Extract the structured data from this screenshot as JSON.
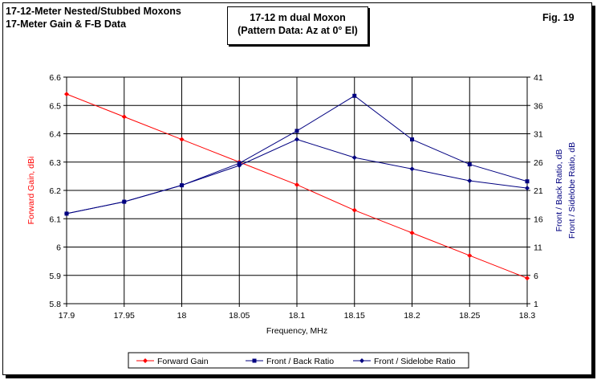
{
  "header": {
    "title_line1": "17-12-Meter Nested/Stubbed Moxons",
    "title_line2": "17-Meter Gain & F-B Data",
    "box_line1": "17-12 m dual Moxon",
    "box_line2": "(Pattern Data: Az at 0° El)",
    "fig_label": "Fig. 19"
  },
  "chart_data": {
    "type": "line",
    "title": "17-12 m dual Moxon",
    "subtitle": "(Pattern Data: Az at 0° El)",
    "xlabel": "Frequency, MHz",
    "ylabel_left": "Forward Gain, dBi",
    "ylabel_right_1": "Front / Back Ratio,  dB",
    "ylabel_right_2": "Front / Sidelobe Ratio,  dB",
    "x": [
      17.9,
      17.95,
      18.0,
      18.05,
      18.1,
      18.15,
      18.2,
      18.25,
      18.3
    ],
    "x_tick_labels": [
      "17.9",
      "17.95",
      "18",
      "18.05",
      "18.1",
      "18.15",
      "18.2",
      "18.25",
      "18.3"
    ],
    "ylim_left": [
      5.8,
      6.6
    ],
    "y_left_ticks": [
      "5.8",
      "5.9",
      "6",
      "6.1",
      "6.2",
      "6.3",
      "6.4",
      "6.5",
      "6.6"
    ],
    "ylim_right": [
      1,
      41
    ],
    "y_right_ticks": [
      "1",
      "6",
      "11",
      "16",
      "21",
      "26",
      "31",
      "36",
      "41"
    ],
    "grid": true,
    "legend_position": "bottom",
    "series": [
      {
        "name": "Forward Gain",
        "axis": "left",
        "color": "#ff0000",
        "marker": "diamond",
        "values": [
          6.54,
          6.46,
          6.38,
          6.3,
          6.22,
          6.13,
          6.05,
          5.97,
          5.89
        ]
      },
      {
        "name": "Front / Back Ratio",
        "axis": "right",
        "color": "#000080",
        "marker": "square",
        "values": [
          16.9,
          19.0,
          21.9,
          25.8,
          31.5,
          37.7,
          30.0,
          25.6,
          22.6
        ]
      },
      {
        "name": "Front / Sidelobe Ratio",
        "axis": "right",
        "color": "#000080",
        "marker": "diamond",
        "values": [
          16.9,
          19.0,
          21.9,
          25.4,
          30.0,
          26.8,
          24.8,
          22.7,
          21.4
        ]
      }
    ]
  }
}
